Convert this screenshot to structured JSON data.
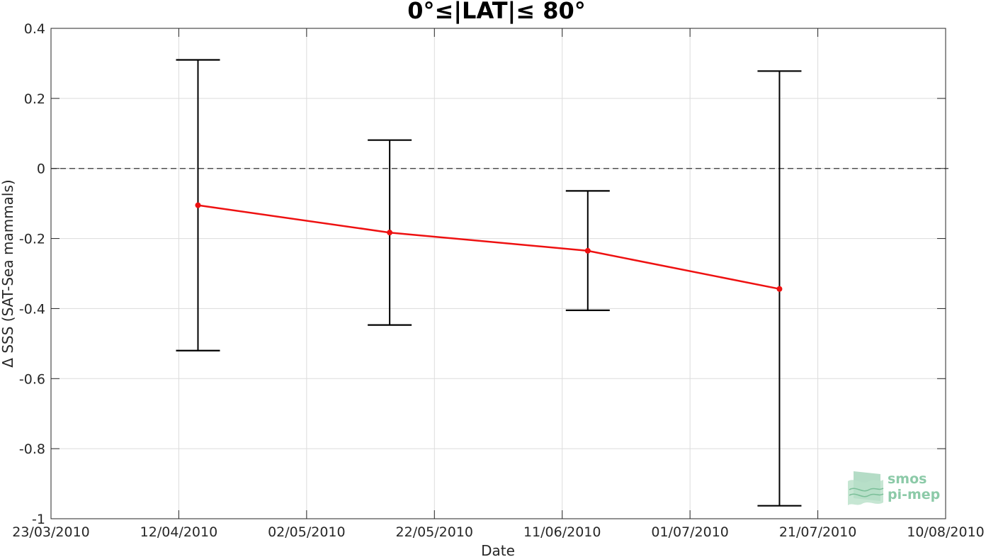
{
  "chart_data": {
    "type": "line",
    "title": "0°≤|LAT|≤ 80°",
    "xlabel": "Date",
    "ylabel": "Δ SSS (SAT-Sea mammals)",
    "x_ticks": [
      "23/03/2010",
      "12/04/2010",
      "02/05/2010",
      "22/05/2010",
      "11/06/2010",
      "01/07/2010",
      "21/07/2010",
      "10/08/2010"
    ],
    "y_ticks": [
      "-1",
      "-0.8",
      "-0.6",
      "-0.4",
      "-0.2",
      "0",
      "0.2",
      "0.4"
    ],
    "xlim": [
      "2010-03-23",
      "2010-08-10"
    ],
    "ylim": [
      -1,
      0.4
    ],
    "grid": true,
    "zero_line": true,
    "series": [
      {
        "color": "#ee1111",
        "points": [
          {
            "x": "2010-04-15",
            "y": -0.105,
            "err_low": -0.52,
            "err_high": 0.31
          },
          {
            "x": "2010-05-15",
            "y": -0.183,
            "err_low": -0.447,
            "err_high": 0.081
          },
          {
            "x": "2010-06-15",
            "y": -0.235,
            "err_low": -0.405,
            "err_high": -0.064
          },
          {
            "x": "2010-07-15",
            "y": -0.344,
            "err_low": -0.963,
            "err_high": 0.278
          }
        ]
      }
    ],
    "errorbar_color": "#000000"
  },
  "logo": {
    "line1": "smos",
    "line2": "pi-mep",
    "color": "#8ccaa8"
  }
}
